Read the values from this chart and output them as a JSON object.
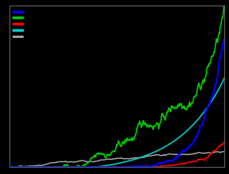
{
  "background_color": "#000000",
  "plot_bg_color": "#000000",
  "grid_color": "#404040",
  "n_points": 500,
  "line_colors": [
    "#0000ff",
    "#00cc00",
    "#ff0000",
    "#00cccc",
    "#aaaaaa"
  ],
  "line_widths": [
    1.5,
    1.2,
    1.2,
    1.2,
    1.0
  ],
  "ylim": [
    0,
    1.0
  ],
  "xlim": [
    0,
    500
  ]
}
